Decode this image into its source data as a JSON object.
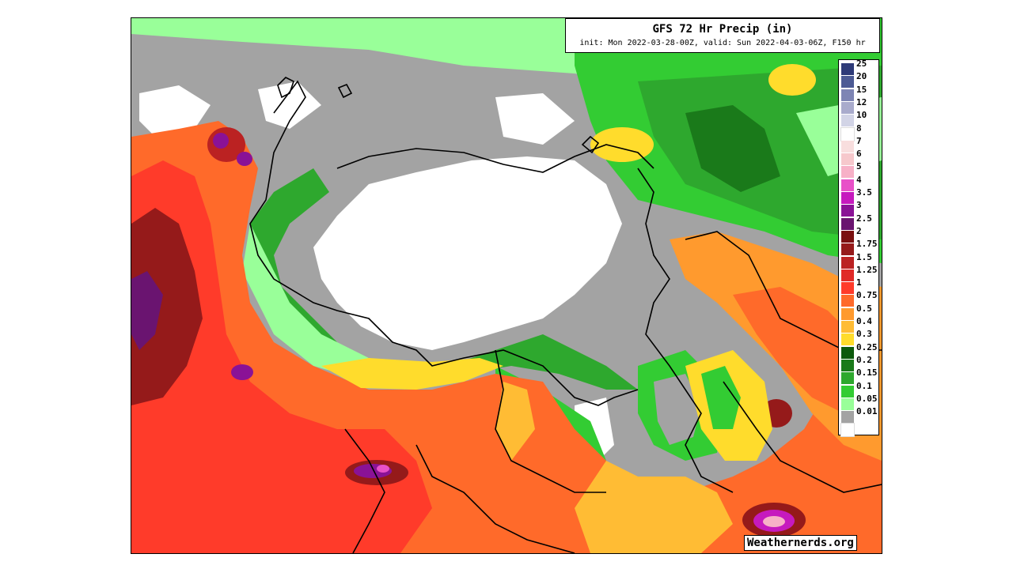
{
  "map": {
    "title": "GFS 72 Hr Precip (in)",
    "subtitle": "init: Mon 2022-03-28-00Z, valid: Sun 2022-04-03-06Z, F150 hr",
    "credit": "Weathernerds.org",
    "legend": [
      {
        "label": "25",
        "color": "#2e3a78"
      },
      {
        "label": "20",
        "color": "#4c5a94"
      },
      {
        "label": "15",
        "color": "#7e85b4"
      },
      {
        "label": "12",
        "color": "#a9abcc"
      },
      {
        "label": "10",
        "color": "#d2d4e6"
      },
      {
        "label": "8",
        "color": "#ffffff"
      },
      {
        "label": "7",
        "color": "#f8dede"
      },
      {
        "label": "6",
        "color": "#f6c8cc"
      },
      {
        "label": "5",
        "color": "#f7b1c7"
      },
      {
        "label": "4",
        "color": "#e851c8"
      },
      {
        "label": "3.5",
        "color": "#c61abe"
      },
      {
        "label": "3",
        "color": "#8a1296"
      },
      {
        "label": "2.5",
        "color": "#6a1470"
      },
      {
        "label": "2",
        "color": "#7a1010"
      },
      {
        "label": "1.75",
        "color": "#951a1a"
      },
      {
        "label": "1.5",
        "color": "#bb2222"
      },
      {
        "label": "1.25",
        "color": "#e02a28"
      },
      {
        "label": "1",
        "color": "#ff3b2a"
      },
      {
        "label": "0.75",
        "color": "#ff6a2a"
      },
      {
        "label": "0.5",
        "color": "#ff9a2e"
      },
      {
        "label": "0.4",
        "color": "#ffbc34"
      },
      {
        "label": "0.3",
        "color": "#ffdc2c"
      },
      {
        "label": "0.25",
        "color": "#0c5a0c"
      },
      {
        "label": "0.2",
        "color": "#1a7a1a"
      },
      {
        "label": "0.15",
        "color": "#2ea82e"
      },
      {
        "label": "0.1",
        "color": "#33cc33"
      },
      {
        "label": "0.05",
        "color": "#99ff99"
      },
      {
        "label": "0.01",
        "color": "#a3a3a3"
      },
      {
        "label": "",
        "color": "#ffffff"
      }
    ]
  }
}
